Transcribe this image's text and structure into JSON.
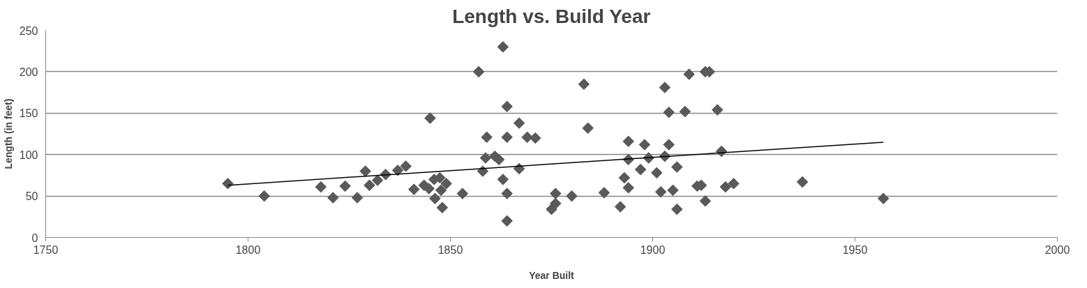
{
  "chart_data": {
    "type": "scatter",
    "title": "Length vs. Build Year",
    "xlabel": "Year Built",
    "ylabel": "Length (in feet)",
    "xlim": [
      1750,
      2000
    ],
    "xticks": [
      1750,
      1800,
      1850,
      1900,
      1950,
      2000
    ],
    "ylim": [
      0,
      250
    ],
    "yticks": [
      0,
      50,
      100,
      150,
      200,
      250
    ],
    "grid": "y",
    "series": [
      {
        "color": "#595959",
        "marker": "diamond",
        "x": [
          1795,
          1804,
          1818,
          1821,
          1824,
          1827,
          1829,
          1830,
          1832,
          1834,
          1837,
          1839,
          1841,
          1843.5,
          1845,
          1844.7,
          1846,
          1846.2,
          1847.4,
          1847.7,
          1848,
          1849,
          1853,
          1857,
          1858,
          1858.7,
          1859,
          1861,
          1862,
          1863,
          1864,
          1864,
          1863,
          1864,
          1864,
          1867,
          1867,
          1869,
          1871,
          1875,
          1876,
          1876,
          1880,
          1883,
          1884,
          1888,
          1892,
          1893,
          1894,
          1894,
          1894,
          1897,
          1898,
          1899,
          1901,
          1902,
          1903,
          1903,
          1904,
          1904,
          1905,
          1906,
          1906,
          1908,
          1909,
          1911,
          1912,
          1913,
          1913,
          1914,
          1916,
          1917,
          1918,
          1920,
          1937,
          1957
        ],
        "values": [
          65,
          50,
          61,
          48,
          62,
          48,
          80,
          63,
          69,
          76,
          81,
          86,
          58,
          63,
          144,
          59,
          70,
          47,
          72,
          57,
          36,
          65,
          53,
          200,
          80,
          96,
          121,
          98,
          94,
          230,
          158,
          121,
          70,
          53,
          20,
          138,
          83,
          121,
          120,
          34,
          41,
          53,
          50,
          185,
          132,
          54,
          37,
          72,
          116,
          94,
          60,
          82,
          112,
          96,
          78,
          55,
          181,
          98,
          112,
          151,
          57,
          85,
          34,
          152,
          197,
          62,
          63,
          44,
          200,
          200,
          154,
          104,
          61,
          65,
          67,
          47
        ]
      },
      {
        "type": "line",
        "color": "#000000",
        "line_style": "solid",
        "marker": "none",
        "x": [
          1795,
          1957
        ],
        "values": [
          63,
          115
        ]
      }
    ]
  }
}
